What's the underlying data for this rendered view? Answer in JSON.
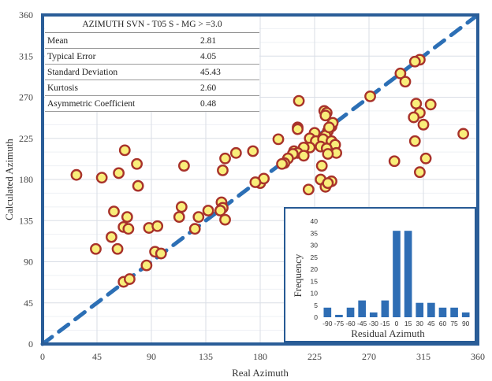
{
  "stats_table": {
    "title": "AZIMUTH SVN - T05 S - MG > =3.0",
    "rows": [
      {
        "label": "Mean",
        "value": "2.81"
      },
      {
        "label": "Typical Error",
        "value": "4.05"
      },
      {
        "label": "Standard Deviation",
        "value": "45.43"
      },
      {
        "label": "Kurtosis",
        "value": "2.60"
      },
      {
        "label": "Asymmetric Coefficient",
        "value": "0.48"
      }
    ]
  },
  "colors": {
    "frame": "#2a5d98",
    "reference_line": "#2c6fb5",
    "marker_fill": "#f9ee7a",
    "marker_edge": "#a8322a",
    "bar": "#2e6db4",
    "grid_major": "#d9dee6",
    "grid_minor": "#eef0f4"
  },
  "chart_data": [
    {
      "type": "scatter",
      "title": "",
      "xlabel": "Real Azimuth",
      "ylabel": "Calculated Azimuth",
      "xlim": [
        0,
        360
      ],
      "ylim": [
        0,
        360
      ],
      "xticks": [
        0,
        45,
        90,
        135,
        180,
        225,
        270,
        315,
        360
      ],
      "yticks": [
        0,
        45,
        90,
        135,
        180,
        225,
        270,
        315,
        360
      ],
      "grid": true,
      "reference_line": {
        "label": "y = x",
        "style": "dashed",
        "from": [
          0,
          0
        ],
        "to": [
          360,
          360
        ]
      },
      "points": [
        [
          28,
          185
        ],
        [
          49,
          182
        ],
        [
          63,
          187
        ],
        [
          68,
          212
        ],
        [
          78,
          197
        ],
        [
          79,
          173
        ],
        [
          59,
          145
        ],
        [
          70,
          139
        ],
        [
          67,
          128
        ],
        [
          71,
          126
        ],
        [
          88,
          127
        ],
        [
          95,
          129
        ],
        [
          57,
          117
        ],
        [
          44,
          104
        ],
        [
          62,
          104
        ],
        [
          93,
          101
        ],
        [
          98,
          99
        ],
        [
          86,
          86
        ],
        [
          67,
          68
        ],
        [
          72,
          71
        ],
        [
          117,
          195
        ],
        [
          151,
          203
        ],
        [
          149,
          190
        ],
        [
          160,
          209
        ],
        [
          174,
          211
        ],
        [
          180,
          176
        ],
        [
          183,
          181
        ],
        [
          176,
          177
        ],
        [
          115,
          150
        ],
        [
          113,
          139
        ],
        [
          129,
          139
        ],
        [
          137,
          146
        ],
        [
          148,
          155
        ],
        [
          149,
          149
        ],
        [
          147,
          146
        ],
        [
          151,
          136
        ],
        [
          126,
          126
        ],
        [
          195,
          224
        ],
        [
          212,
          266
        ],
        [
          211,
          237
        ],
        [
          211,
          235
        ],
        [
          233,
          255
        ],
        [
          235,
          253
        ],
        [
          234,
          250
        ],
        [
          225,
          231
        ],
        [
          236,
          233
        ],
        [
          234,
          228
        ],
        [
          221,
          225
        ],
        [
          226,
          222
        ],
        [
          232,
          224
        ],
        [
          239,
          222
        ],
        [
          242,
          218
        ],
        [
          230,
          216
        ],
        [
          235,
          214
        ],
        [
          243,
          209
        ],
        [
          236,
          208
        ],
        [
          221,
          215
        ],
        [
          216,
          215
        ],
        [
          208,
          211
        ],
        [
          211,
          209
        ],
        [
          207,
          208
        ],
        [
          203,
          203
        ],
        [
          200,
          198
        ],
        [
          198,
          197
        ],
        [
          216,
          206
        ],
        [
          239,
          238
        ],
        [
          240,
          242
        ],
        [
          237,
          237
        ],
        [
          231,
          195
        ],
        [
          230,
          180
        ],
        [
          234,
          172
        ],
        [
          239,
          178
        ],
        [
          236,
          176
        ],
        [
          220,
          169
        ],
        [
          312,
          311
        ],
        [
          308,
          309
        ],
        [
          296,
          296
        ],
        [
          300,
          287
        ],
        [
          271,
          271
        ],
        [
          309,
          263
        ],
        [
          321,
          262
        ],
        [
          312,
          253
        ],
        [
          307,
          248
        ],
        [
          315,
          240
        ],
        [
          308,
          222
        ],
        [
          348,
          230
        ],
        [
          291,
          200
        ],
        [
          317,
          203
        ],
        [
          312,
          188
        ]
      ]
    },
    {
      "type": "bar",
      "title": "",
      "xlabel": "Residual Azimuth",
      "ylabel": "Frequency",
      "categories": [
        "-90",
        "-75",
        "-60",
        "-45",
        "-30",
        "-15",
        "0",
        "15",
        "30",
        "45",
        "60",
        "75",
        "90"
      ],
      "values": [
        4,
        1,
        4,
        7,
        2,
        7,
        36,
        36,
        6,
        6,
        4,
        4,
        2
      ],
      "ylim": [
        0,
        40
      ],
      "yticks": [
        0,
        5,
        10,
        15,
        20,
        25,
        30,
        35,
        40
      ],
      "grid": false
    }
  ]
}
